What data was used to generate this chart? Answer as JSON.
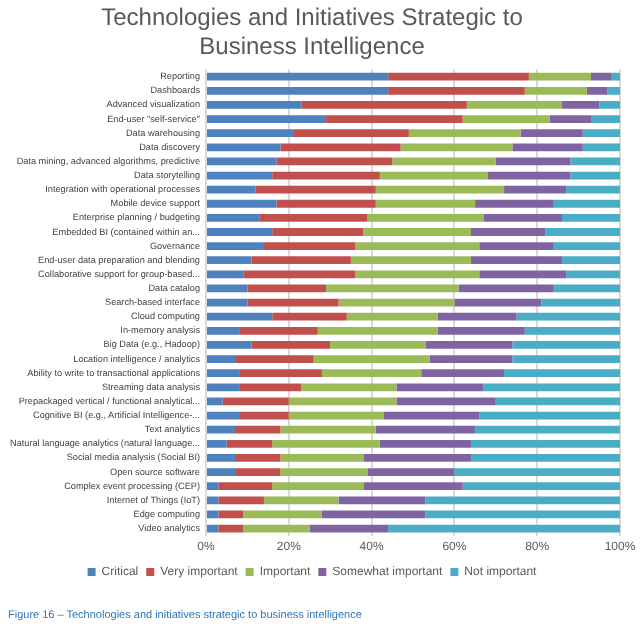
{
  "chart_data": {
    "type": "bar",
    "orientation": "horizontal",
    "stacked": true,
    "title": "Technologies and Initiatives Strategic to Business Intelligence",
    "categories": [
      "Reporting",
      "Dashboards",
      "Advanced visualization",
      "End-user \"self-service\"",
      "Data warehousing",
      "Data discovery",
      "Data mining, advanced algorithms, predictive",
      "Data storytelling",
      "Integration with operational processes",
      "Mobile device support",
      "Enterprise planning / budgeting",
      "Embedded BI (contained within an...",
      "Governance",
      "End-user data preparation and blending",
      "Collaborative support for group-based...",
      "Data catalog",
      "Search-based interface",
      "Cloud computing",
      "In-memory analysis",
      "Big Data (e.g., Hadoop)",
      "Location intelligence / analytics",
      "Ability to write to transactional applications",
      "Streaming data analysis",
      "Prepackaged vertical / functional analytical...",
      "Cognitive BI (e.g., Artificial Intelligence-...",
      "Text analytics",
      "Natural language analytics (natural language...",
      "Social media analysis (Social BI)",
      "Open source software",
      "Complex event processing (CEP)",
      "Internet of Things (IoT)",
      "Edge computing",
      "Video analytics"
    ],
    "series": [
      {
        "name": "Critical",
        "color": "#4f81bd",
        "values": [
          44,
          44,
          23,
          29,
          21,
          18,
          17,
          16,
          12,
          17,
          13,
          16,
          14,
          11,
          9,
          10,
          10,
          16,
          8,
          11,
          7,
          8,
          8,
          4,
          8,
          7,
          5,
          7,
          7,
          3,
          3,
          3,
          3
        ]
      },
      {
        "name": "Very important",
        "color": "#c0504d",
        "values": [
          34,
          33,
          40,
          33,
          28,
          29,
          28,
          26,
          29,
          24,
          26,
          22,
          22,
          24,
          27,
          19,
          22,
          18,
          19,
          19,
          19,
          20,
          15,
          16,
          12,
          11,
          11,
          11,
          11,
          13,
          11,
          6,
          6
        ]
      },
      {
        "name": "Important",
        "color": "#9bbb59",
        "values": [
          15,
          15,
          23,
          21,
          27,
          27,
          25,
          26,
          31,
          24,
          28,
          26,
          30,
          29,
          30,
          32,
          28,
          22,
          29,
          23,
          28,
          24,
          23,
          26,
          23,
          23,
          26,
          20,
          21,
          22,
          18,
          19,
          16
        ]
      },
      {
        "name": "Somewhat important",
        "color": "#8064a2",
        "values": [
          5,
          5,
          9,
          10,
          15,
          17,
          18,
          20,
          15,
          19,
          19,
          18,
          18,
          22,
          21,
          23,
          21,
          19,
          21,
          21,
          20,
          20,
          21,
          24,
          23,
          24,
          22,
          26,
          21,
          24,
          21,
          25,
          19
        ]
      },
      {
        "name": "Not important",
        "color": "#4bacc6",
        "values": [
          2,
          3,
          5,
          7,
          9,
          9,
          12,
          12,
          13,
          16,
          14,
          18,
          16,
          14,
          13,
          16,
          19,
          25,
          23,
          26,
          26,
          28,
          33,
          30,
          34,
          35,
          36,
          36,
          40,
          38,
          47,
          47,
          56
        ]
      }
    ],
    "xlim": [
      0,
      100
    ],
    "xticks": [
      {
        "value": 0,
        "label": "0%"
      },
      {
        "value": 20,
        "label": "20%"
      },
      {
        "value": 40,
        "label": "40%"
      },
      {
        "value": 60,
        "label": "60%"
      },
      {
        "value": 80,
        "label": "80%"
      },
      {
        "value": 100,
        "label": "100%"
      }
    ],
    "grid": "x",
    "legend": "bottom",
    "annotations": [
      "Figure 16 – Technologies and initiatives strategic to business intelligence"
    ]
  }
}
